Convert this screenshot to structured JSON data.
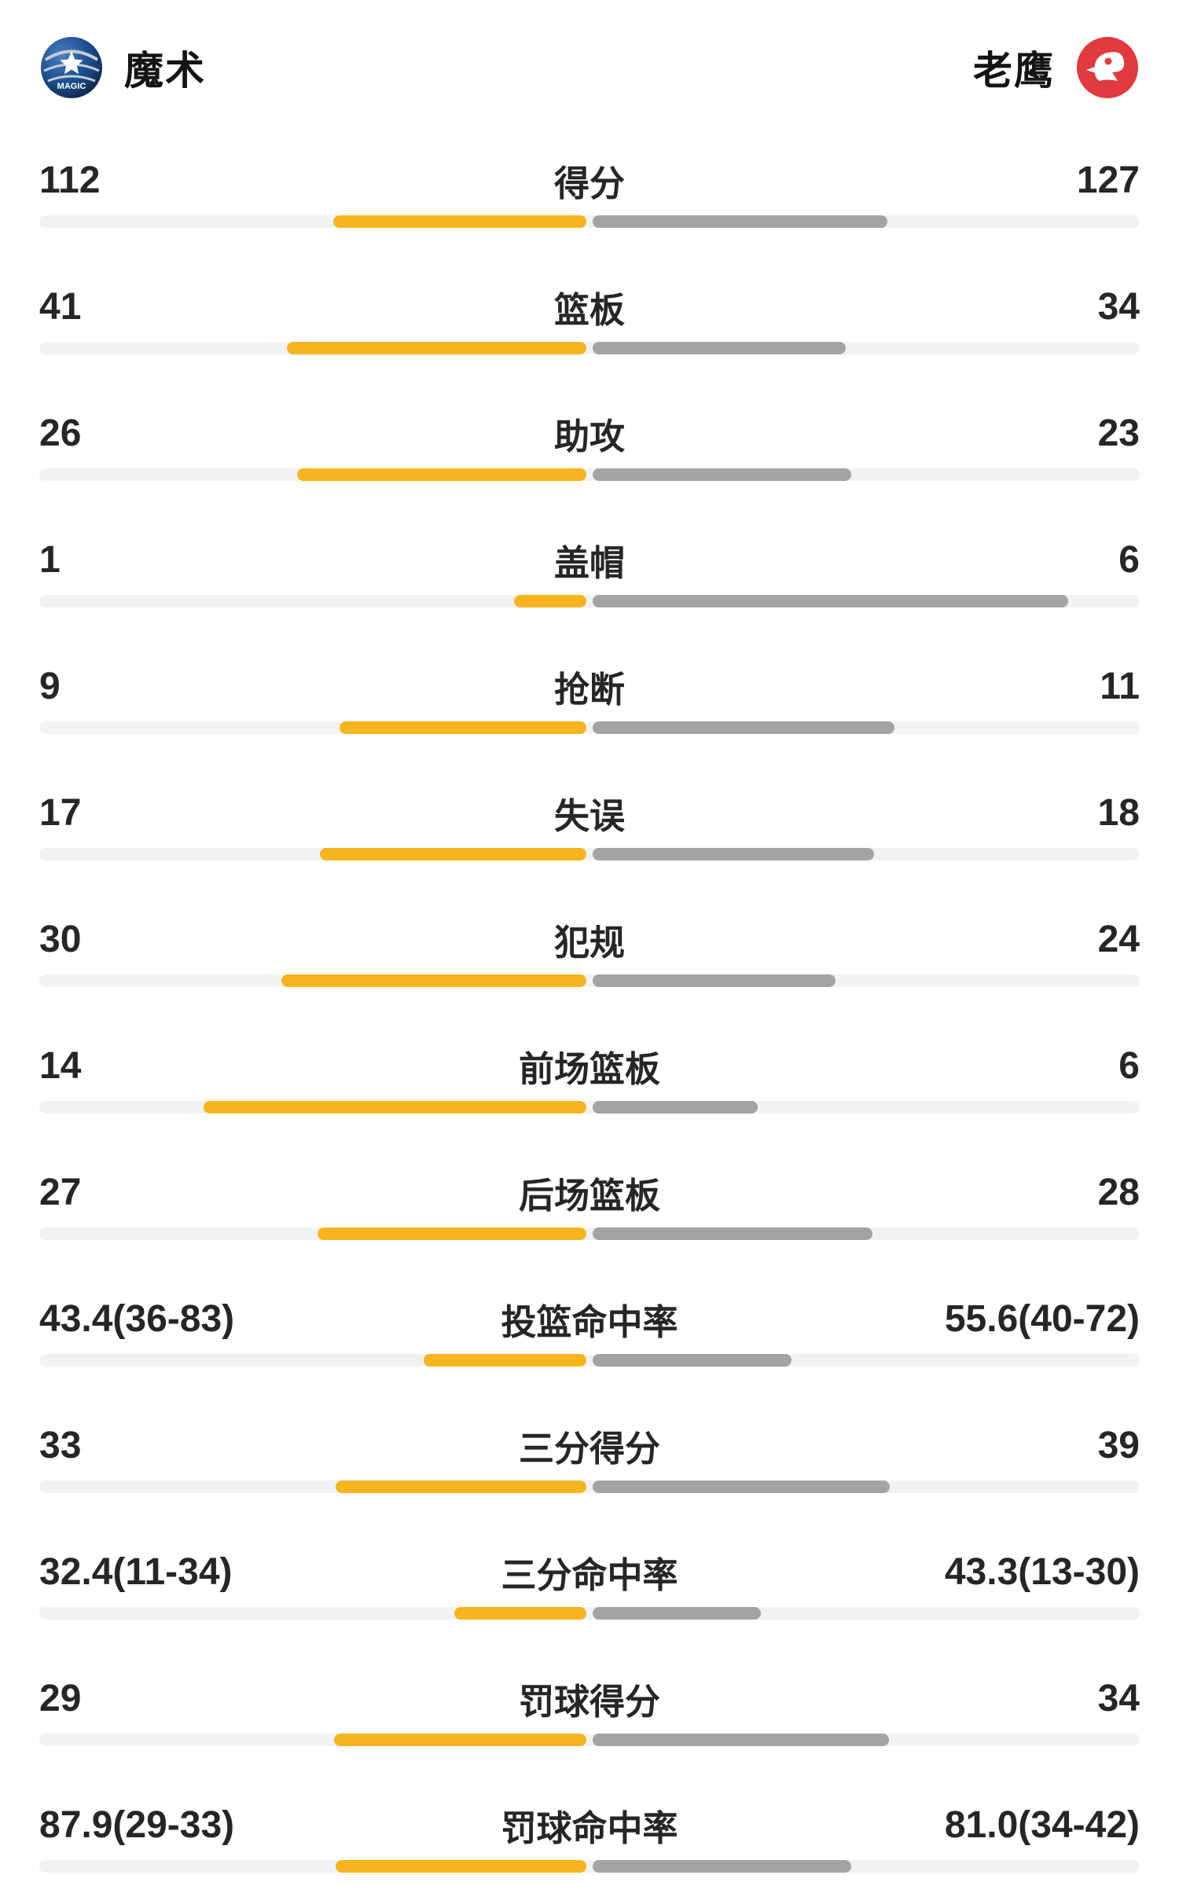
{
  "header": {
    "left_team": {
      "name": "魔术"
    },
    "right_team": {
      "name": "老鹰"
    }
  },
  "colors": {
    "left_bar": "#F6B51E",
    "right_bar": "#A3A3A3",
    "track": "#F1F2F4",
    "text": "#262626",
    "hawks_red": "#E03A3E",
    "magic_navy": "#0C2340"
  },
  "chart_data": {
    "type": "bar",
    "orientation": "tornado-comparison",
    "teams": [
      "魔术",
      "老鹰"
    ],
    "legend_position": "header",
    "rows": [
      {
        "label": "得分",
        "left": "112",
        "right": "127",
        "left_bar": 23.0,
        "right_bar": 26.8
      },
      {
        "label": "篮板",
        "left": "41",
        "right": "34",
        "left_bar": 27.2,
        "right_bar": 23.0
      },
      {
        "label": "助攻",
        "left": "26",
        "right": "23",
        "left_bar": 26.3,
        "right_bar": 23.5
      },
      {
        "label": "盖帽",
        "left": "1",
        "right": "6",
        "left_bar": 6.6,
        "right_bar": 43.2
      },
      {
        "label": "抢断",
        "left": "9",
        "right": "11",
        "left_bar": 22.4,
        "right_bar": 27.4
      },
      {
        "label": "失误",
        "left": "17",
        "right": "18",
        "left_bar": 24.2,
        "right_bar": 25.6
      },
      {
        "label": "犯规",
        "left": "30",
        "right": "24",
        "left_bar": 27.7,
        "right_bar": 22.1
      },
      {
        "label": "前场篮板",
        "left": "14",
        "right": "6",
        "left_bar": 34.8,
        "right_bar": 15.0
      },
      {
        "label": "后场篮板",
        "left": "27",
        "right": "28",
        "left_bar": 24.4,
        "right_bar": 25.4
      },
      {
        "label": "投篮命中率",
        "left": "43.4(36-83)",
        "right": "55.6(40-72)",
        "left_bar": 14.8,
        "right_bar": 18.1
      },
      {
        "label": "三分得分",
        "left": "33",
        "right": "39",
        "left_bar": 22.8,
        "right_bar": 27.0
      },
      {
        "label": "三分命中率",
        "left": "32.4(11-34)",
        "right": "43.3(13-30)",
        "left_bar": 12.0,
        "right_bar": 15.3
      },
      {
        "label": "罚球得分",
        "left": "29",
        "right": "34",
        "left_bar": 22.9,
        "right_bar": 26.9
      },
      {
        "label": "罚球命中率",
        "left": "87.9(29-33)",
        "right": "81.0(34-42)",
        "left_bar": 22.8,
        "right_bar": 23.5
      }
    ]
  }
}
